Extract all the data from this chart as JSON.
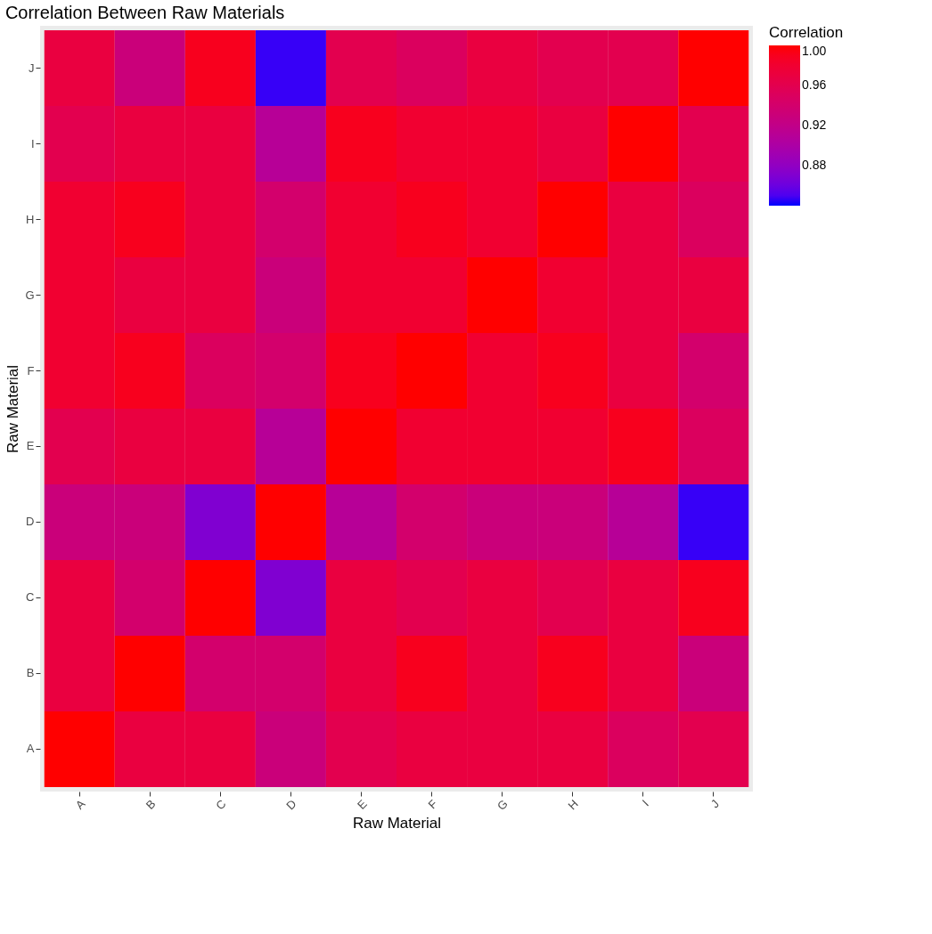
{
  "chart_data": {
    "type": "heatmap",
    "title": "Correlation Between Raw Materials",
    "xlabel": "Raw Material",
    "ylabel": "Raw Material",
    "clabel": "Correlation",
    "categories": [
      "A",
      "B",
      "C",
      "D",
      "E",
      "F",
      "G",
      "H",
      "I",
      "J"
    ],
    "y_categories": [
      "J",
      "I",
      "H",
      "G",
      "F",
      "E",
      "D",
      "C",
      "B",
      "A"
    ],
    "cells": [
      [
        0.97,
        0.93,
        0.99,
        0.845,
        0.96,
        0.95,
        0.97,
        0.96,
        0.96,
        1.0
      ],
      [
        0.96,
        0.97,
        0.97,
        0.91,
        0.99,
        0.98,
        0.98,
        0.97,
        1.0,
        0.96
      ],
      [
        0.98,
        0.99,
        0.97,
        0.94,
        0.98,
        0.99,
        0.98,
        1.0,
        0.97,
        0.95
      ],
      [
        0.98,
        0.97,
        0.97,
        0.93,
        0.98,
        0.98,
        1.0,
        0.98,
        0.97,
        0.97
      ],
      [
        0.98,
        0.99,
        0.95,
        0.94,
        0.99,
        1.0,
        0.98,
        0.99,
        0.97,
        0.94
      ],
      [
        0.96,
        0.97,
        0.97,
        0.91,
        1.0,
        0.98,
        0.98,
        0.98,
        0.99,
        0.95
      ],
      [
        0.93,
        0.93,
        0.87,
        1.0,
        0.91,
        0.94,
        0.93,
        0.93,
        0.91,
        0.845
      ],
      [
        0.97,
        0.94,
        1.0,
        0.87,
        0.97,
        0.96,
        0.97,
        0.96,
        0.97,
        0.99
      ],
      [
        0.97,
        1.0,
        0.94,
        0.94,
        0.97,
        0.99,
        0.97,
        0.99,
        0.97,
        0.93
      ],
      [
        1.0,
        0.97,
        0.97,
        0.93,
        0.96,
        0.97,
        0.97,
        0.97,
        0.95,
        0.96
      ]
    ],
    "clim": [
      0.84,
      1.0
    ],
    "cticks": [
      0.88,
      0.92,
      0.96,
      {
        "value": 1.0,
        "label": "1.00"
      }
    ],
    "colors": [
      "#0000ff",
      "#ff0000"
    ]
  }
}
